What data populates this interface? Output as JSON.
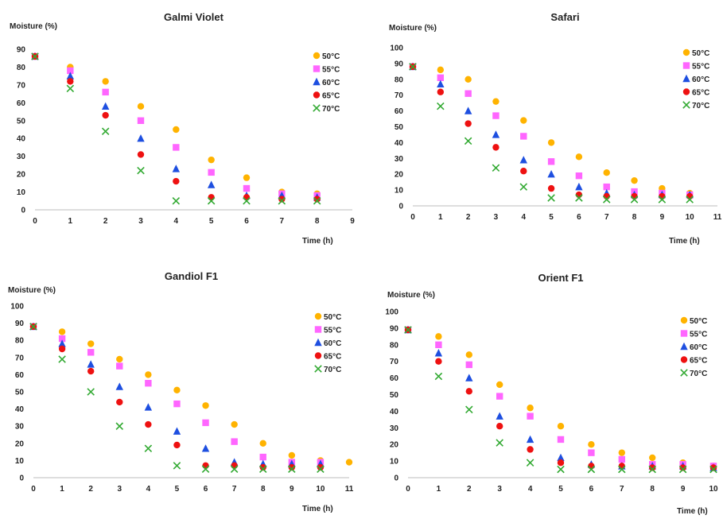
{
  "series_style": [
    {
      "color": "#FFB300",
      "marker": "circle"
    },
    {
      "color": "#FF66FF",
      "marker": "square"
    },
    {
      "color": "#1E4FE0",
      "marker": "triangle"
    },
    {
      "color": "#EE1111",
      "marker": "circle"
    },
    {
      "color": "#33AA33",
      "marker": "x"
    }
  ],
  "chart_data": [
    {
      "type": "scatter",
      "title": "Galmi Violet",
      "xlabel": "Time (h)",
      "ylabel": "Moisture (%)",
      "xlim": [
        0,
        9
      ],
      "ylim": [
        0,
        90
      ],
      "xticks": [
        "0",
        "1",
        "2",
        "3",
        "4",
        "5",
        "6",
        "7",
        "8",
        "9"
      ],
      "yticks": [
        "0",
        "10",
        "20",
        "30",
        "40",
        "50",
        "60",
        "70",
        "80",
        "90"
      ],
      "legend": "top-right",
      "x": [
        0,
        1,
        2,
        3,
        4,
        5,
        6,
        7,
        8
      ],
      "series": [
        {
          "name": "50°C",
          "values": [
            86,
            80,
            72,
            58,
            45,
            28,
            18,
            10,
            9
          ]
        },
        {
          "name": "55°C",
          "values": [
            86,
            78,
            66,
            50,
            35,
            21,
            12,
            9,
            8
          ]
        },
        {
          "name": "60°C",
          "values": [
            86,
            75,
            58,
            40,
            23,
            14,
            8,
            8,
            7
          ]
        },
        {
          "name": "65°C",
          "values": [
            86,
            72,
            53,
            31,
            16,
            7,
            7,
            6,
            6
          ]
        },
        {
          "name": "70°C",
          "values": [
            86,
            68,
            44,
            22,
            5,
            5,
            5,
            5,
            5
          ]
        }
      ]
    },
    {
      "type": "scatter",
      "title": "Safari",
      "xlabel": "Time (h)",
      "ylabel": "Moisture (%)",
      "xlim": [
        0,
        11
      ],
      "ylim": [
        0,
        100
      ],
      "xticks": [
        "0",
        "1",
        "2",
        "3",
        "4",
        "5",
        "6",
        "7",
        "8",
        "9",
        "10",
        "11"
      ],
      "yticks": [
        "0",
        "10",
        "20",
        "30",
        "40",
        "50",
        "60",
        "70",
        "80",
        "90",
        "100"
      ],
      "legend": "top-right",
      "x": [
        0,
        1,
        2,
        3,
        4,
        5,
        6,
        7,
        8,
        9,
        10
      ],
      "series": [
        {
          "name": "50°C",
          "values": [
            88,
            86,
            80,
            66,
            54,
            40,
            31,
            21,
            16,
            11,
            8
          ]
        },
        {
          "name": "55°C",
          "values": [
            88,
            81,
            71,
            57,
            44,
            28,
            19,
            12,
            9,
            8,
            7
          ]
        },
        {
          "name": "60°C",
          "values": [
            88,
            77,
            60,
            45,
            29,
            20,
            12,
            8,
            7,
            7,
            7
          ]
        },
        {
          "name": "65°C",
          "values": [
            88,
            72,
            52,
            37,
            22,
            11,
            7,
            6,
            6,
            6,
            6
          ]
        },
        {
          "name": "70°C",
          "values": [
            88,
            63,
            41,
            24,
            12,
            5,
            5,
            4,
            4,
            4,
            4
          ]
        }
      ]
    },
    {
      "type": "scatter",
      "title": "Gandiol F1",
      "xlabel": "Time (h)",
      "ylabel": "Moisture (%)",
      "xlim": [
        0,
        11
      ],
      "ylim": [
        0,
        100
      ],
      "xticks": [
        "0",
        "1",
        "2",
        "3",
        "4",
        "5",
        "6",
        "7",
        "8",
        "9",
        "10",
        "11"
      ],
      "yticks": [
        "0",
        "10",
        "20",
        "30",
        "40",
        "50",
        "60",
        "70",
        "80",
        "90",
        "100"
      ],
      "legend": "top-right",
      "x": [
        0,
        1,
        2,
        3,
        4,
        5,
        6,
        7,
        8,
        9,
        10,
        11
      ],
      "series": [
        {
          "name": "50°C",
          "values": [
            88,
            85,
            78,
            69,
            60,
            51,
            42,
            31,
            20,
            13,
            10,
            9
          ]
        },
        {
          "name": "55°C",
          "values": [
            88,
            81,
            73,
            65,
            55,
            43,
            32,
            21,
            12,
            9,
            9,
            null
          ]
        },
        {
          "name": "60°C",
          "values": [
            88,
            78,
            66,
            53,
            41,
            27,
            17,
            9,
            8,
            8,
            8,
            null
          ]
        },
        {
          "name": "65°C",
          "values": [
            88,
            75,
            62,
            44,
            31,
            19,
            7,
            7,
            6,
            6,
            6,
            null
          ]
        },
        {
          "name": "70°C",
          "values": [
            88,
            69,
            50,
            30,
            17,
            7,
            5,
            5,
            5,
            5,
            5,
            null
          ]
        }
      ]
    },
    {
      "type": "scatter",
      "title": "Orient F1",
      "xlabel": "Time (h)",
      "ylabel": "Moisture (%)",
      "xlim": [
        0,
        10
      ],
      "ylim": [
        0,
        100
      ],
      "xticks": [
        "0",
        "1",
        "2",
        "3",
        "4",
        "5",
        "6",
        "7",
        "8",
        "9",
        "10"
      ],
      "yticks": [
        "0",
        "10",
        "20",
        "30",
        "40",
        "50",
        "60",
        "70",
        "80",
        "90",
        "100"
      ],
      "legend": "top-right",
      "x": [
        0,
        1,
        2,
        3,
        4,
        5,
        6,
        7,
        8,
        9,
        10
      ],
      "series": [
        {
          "name": "50°C",
          "values": [
            89,
            85,
            74,
            56,
            42,
            31,
            20,
            15,
            12,
            9,
            7
          ]
        },
        {
          "name": "55°C",
          "values": [
            89,
            80,
            68,
            49,
            37,
            23,
            15,
            11,
            8,
            8,
            7
          ]
        },
        {
          "name": "60°C",
          "values": [
            89,
            75,
            60,
            37,
            23,
            12,
            8,
            7,
            7,
            7,
            6
          ]
        },
        {
          "name": "65°C",
          "values": [
            89,
            70,
            52,
            31,
            17,
            9,
            7,
            7,
            6,
            6,
            6
          ]
        },
        {
          "name": "70°C",
          "values": [
            89,
            61,
            41,
            21,
            9,
            5,
            5,
            5,
            5,
            5,
            5
          ]
        }
      ]
    }
  ]
}
